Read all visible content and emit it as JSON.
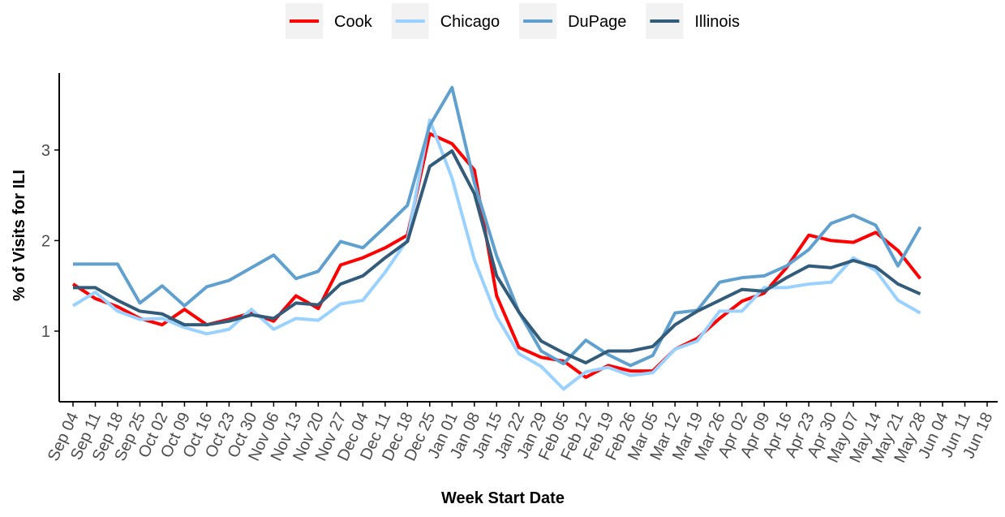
{
  "chart_data": {
    "type": "line",
    "x_label": "Week Start Date",
    "y_label": "% of Visits for ILI",
    "categories": [
      "Sep 04",
      "Sep 11",
      "Sep 18",
      "Sep 25",
      "Oct 02",
      "Oct 09",
      "Oct 16",
      "Oct 23",
      "Oct 30",
      "Nov 06",
      "Nov 13",
      "Nov 20",
      "Nov 27",
      "Dec 04",
      "Dec 11",
      "Dec 18",
      "Dec 25",
      "Jan 01",
      "Jan 08",
      "Jan 15",
      "Jan 22",
      "Jan 29",
      "Feb 05",
      "Feb 12",
      "Feb 19",
      "Feb 26",
      "Mar 05",
      "Mar 12",
      "Mar 19",
      "Mar 26",
      "Apr 02",
      "Apr 09",
      "Apr 16",
      "Apr 23",
      "Apr 30",
      "May 07",
      "May 14",
      "May 21",
      "May 28",
      "Jun 04",
      "Jun 11",
      "Jun 18"
    ],
    "series": [
      {
        "name": "Cook",
        "color": "#ff0000",
        "values": [
          1.52,
          1.36,
          1.27,
          1.14,
          1.07,
          1.24,
          1.07,
          1.13,
          1.2,
          1.11,
          1.39,
          1.25,
          1.73,
          1.81,
          1.92,
          2.06,
          3.18,
          3.07,
          2.78,
          1.39,
          0.82,
          0.71,
          0.67,
          0.49,
          0.62,
          0.56,
          0.56,
          0.8,
          0.92,
          1.14,
          1.33,
          1.42,
          1.7,
          2.06,
          2.0,
          1.98,
          2.09,
          1.89,
          1.58,
          null,
          null,
          null
        ]
      },
      {
        "name": "Chicago",
        "color": "#99d1ff",
        "values": [
          1.28,
          1.43,
          1.22,
          1.13,
          1.14,
          1.04,
          0.97,
          1.02,
          1.24,
          1.02,
          1.14,
          1.12,
          1.3,
          1.34,
          1.65,
          2.01,
          3.33,
          2.69,
          1.79,
          1.16,
          0.75,
          0.61,
          0.36,
          0.55,
          0.6,
          0.51,
          0.54,
          0.8,
          0.89,
          1.22,
          1.22,
          1.48,
          1.48,
          1.52,
          1.54,
          1.81,
          1.67,
          1.34,
          1.2,
          null,
          null,
          null
        ]
      },
      {
        "name": "DuPage",
        "color": "#5fa0cf",
        "values": [
          1.74,
          1.74,
          1.74,
          1.31,
          1.5,
          1.28,
          1.49,
          1.56,
          1.7,
          1.84,
          1.58,
          1.66,
          1.99,
          1.92,
          2.15,
          2.39,
          3.27,
          3.69,
          2.64,
          1.83,
          1.21,
          0.78,
          0.64,
          0.9,
          0.74,
          0.62,
          0.73,
          1.2,
          1.23,
          1.54,
          1.59,
          1.61,
          1.72,
          1.9,
          2.19,
          2.28,
          2.17,
          1.72,
          2.15,
          null,
          null,
          null
        ]
      },
      {
        "name": "Illinois",
        "color": "#335b7a",
        "values": [
          1.48,
          1.48,
          1.34,
          1.22,
          1.19,
          1.07,
          1.07,
          1.11,
          1.18,
          1.14,
          1.31,
          1.29,
          1.52,
          1.61,
          1.81,
          1.99,
          2.82,
          2.99,
          2.52,
          1.61,
          1.21,
          0.89,
          0.76,
          0.65,
          0.78,
          0.78,
          0.83,
          1.07,
          1.22,
          1.34,
          1.46,
          1.44,
          1.59,
          1.72,
          1.7,
          1.78,
          1.71,
          1.52,
          1.41,
          null,
          null,
          null
        ]
      }
    ],
    "ylim": [
      0.22,
      3.85
    ],
    "yticks": [
      1,
      2,
      3
    ],
    "grid": false,
    "legend": "top"
  }
}
